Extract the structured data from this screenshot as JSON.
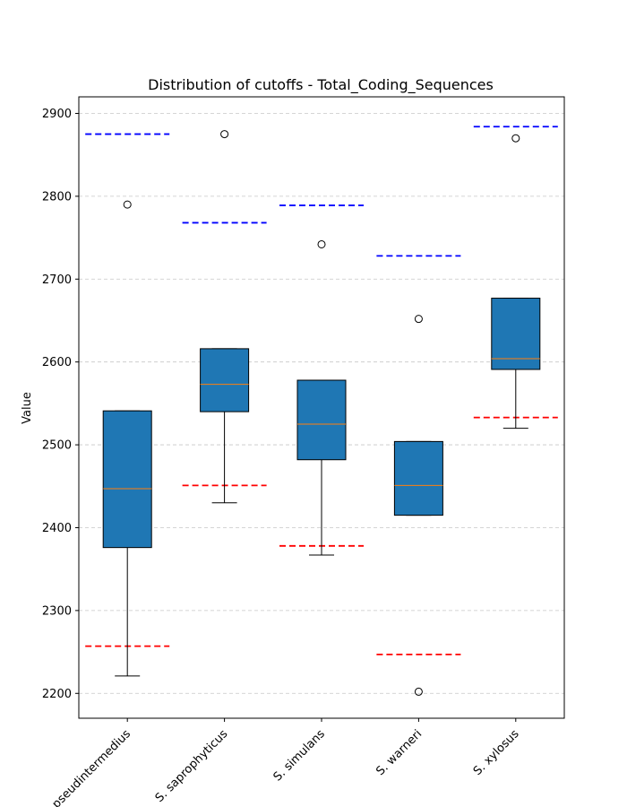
{
  "chart_data": {
    "type": "box",
    "title": "Distribution of cutoffs - Total_Coding_Sequences",
    "xlabel": "",
    "ylabel": "Value",
    "ylim": [
      2170,
      2920
    ],
    "yticks": [
      2200,
      2300,
      2400,
      2500,
      2600,
      2700,
      2800,
      2900
    ],
    "grid": "horizontal dashed",
    "box_color": "#1f77b4",
    "median_color": "#ff7f0e",
    "upper_cutoff_color": "#0000ff",
    "lower_cutoff_color": "#ff0000",
    "categories": [
      "S. pseudintermedius",
      "S. saprophyticus",
      "S. simulans",
      "S. warneri",
      "S. xylosus"
    ],
    "boxes": [
      {
        "whisker_low": 2221,
        "q1": 2376,
        "median": 2447,
        "q3": 2541,
        "whisker_high": 2541,
        "outliers": [
          2790
        ],
        "upper_cutoff": 2875,
        "lower_cutoff": 2257
      },
      {
        "whisker_low": 2430,
        "q1": 2540,
        "median": 2573,
        "q3": 2616,
        "whisker_high": 2616,
        "outliers": [
          2875
        ],
        "upper_cutoff": 2768,
        "lower_cutoff": 2451
      },
      {
        "whisker_low": 2367,
        "q1": 2482,
        "median": 2525,
        "q3": 2578,
        "whisker_high": 2578,
        "outliers": [
          2742
        ],
        "upper_cutoff": 2789,
        "lower_cutoff": 2378
      },
      {
        "whisker_low": 2415,
        "q1": 2415,
        "median": 2451,
        "q3": 2504,
        "whisker_high": 2504,
        "outliers": [
          2652,
          2202
        ],
        "upper_cutoff": 2728,
        "lower_cutoff": 2247
      },
      {
        "whisker_low": 2520,
        "q1": 2591,
        "median": 2604,
        "q3": 2677,
        "whisker_high": 2677,
        "outliers": [
          2870
        ],
        "upper_cutoff": 2884,
        "lower_cutoff": 2533
      }
    ]
  }
}
